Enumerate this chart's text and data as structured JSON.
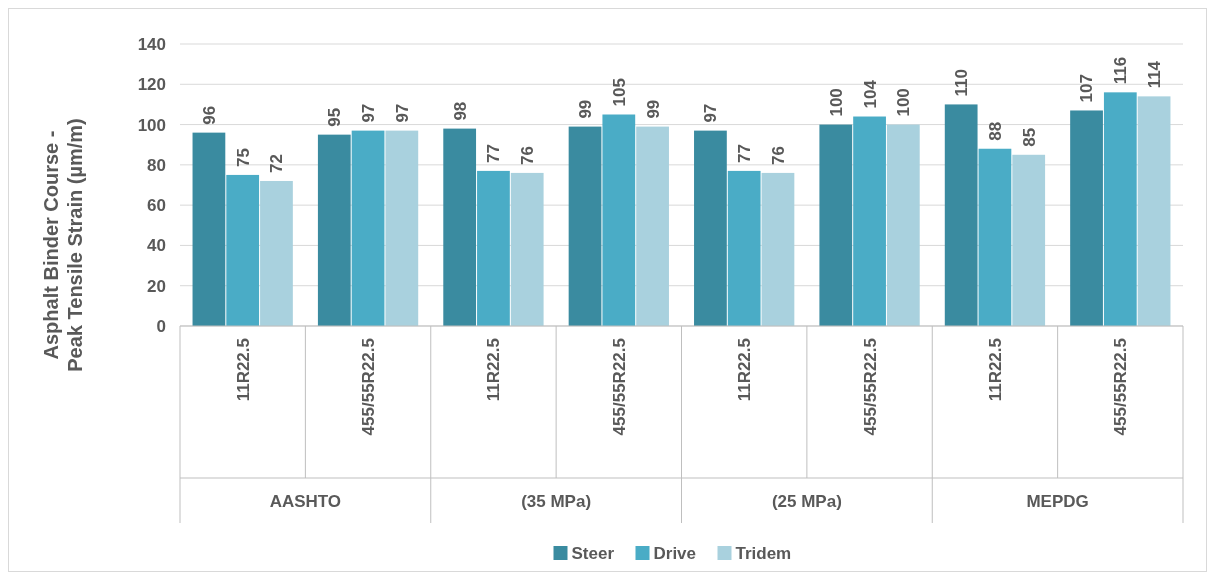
{
  "chart_data": {
    "type": "bar",
    "ylabel": "Asphalt Binder Course - Peak Tensile Strain (µm/m)",
    "categories": [
      "11R22.5",
      "455/55R22.5",
      "11R22.5",
      "455/55R22.5",
      "11R22.5",
      "455/55R22.5",
      "11R22.5",
      "455/55R22.5"
    ],
    "annotations": [
      "AASHTO",
      "(35 MPa)",
      "(25 MPa)",
      "MEPDG"
    ],
    "series": [
      {
        "name": "Steer",
        "color": "#3a8ba0",
        "values": [
          96,
          95,
          98,
          99,
          97,
          100,
          110,
          107
        ]
      },
      {
        "name": "Drive",
        "color": "#4aacc6",
        "values": [
          75,
          97,
          77,
          105,
          77,
          104,
          88,
          116
        ]
      },
      {
        "name": "Tridem",
        "color": "#a9d1de",
        "values": [
          72,
          97,
          76,
          99,
          76,
          100,
          85,
          114
        ]
      }
    ],
    "ylim": [
      0,
      140
    ],
    "yticks": [
      0,
      20,
      40,
      60,
      80,
      100,
      120,
      140
    ],
    "grid": "y",
    "data_labels": true,
    "legend": "bottom"
  }
}
